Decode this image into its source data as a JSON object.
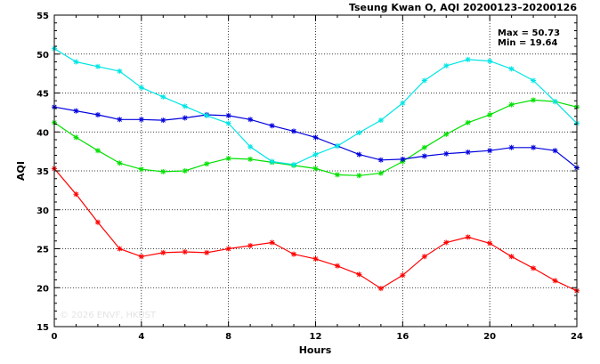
{
  "chart_data": {
    "type": "line",
    "title": "Tseung Kwan O, AQI 20200123–20200126",
    "xlabel": "Hours",
    "ylabel": "AQI",
    "xlim": [
      0,
      24
    ],
    "ylim": [
      15,
      55
    ],
    "xticks": [
      0,
      4,
      8,
      12,
      16,
      20,
      24
    ],
    "yticks": [
      15,
      20,
      25,
      30,
      35,
      40,
      45,
      50,
      55
    ],
    "x_tick_labels": [
      "0",
      "4",
      "8",
      "12",
      "16",
      "20",
      "24"
    ],
    "y_tick_labels": [
      "15",
      "20",
      "25",
      "30",
      "35",
      "40",
      "45",
      "50",
      "55"
    ],
    "grid": true,
    "stats": {
      "max": "Max = 50.73",
      "min": "Min = 19.64"
    },
    "watermark": "© 2026  ENVF, HKUST",
    "x": [
      0,
      1,
      2,
      3,
      4,
      5,
      6,
      7,
      8,
      9,
      10,
      11,
      12,
      13,
      14,
      15,
      16,
      17,
      18,
      19,
      20,
      21,
      22,
      23,
      24
    ],
    "series": [
      {
        "color": "#ff0000",
        "values": [
          35.3,
          32.0,
          28.4,
          25.0,
          24.0,
          24.5,
          24.6,
          24.5,
          25.0,
          25.4,
          25.8,
          24.3,
          23.7,
          22.8,
          21.7,
          19.9,
          21.6,
          24.0,
          25.8,
          26.5,
          25.7,
          24.0,
          22.5,
          20.9,
          19.6
        ]
      },
      {
        "color": "#00e000",
        "values": [
          41.2,
          39.3,
          37.6,
          36.0,
          35.2,
          34.9,
          35.0,
          35.9,
          36.6,
          36.5,
          36.1,
          35.7,
          35.3,
          34.5,
          34.4,
          34.7,
          36.2,
          38.0,
          39.7,
          41.2,
          42.2,
          43.5,
          44.1,
          43.9,
          43.2
        ]
      },
      {
        "color": "#0000dd",
        "values": [
          43.2,
          42.7,
          42.2,
          41.6,
          41.6,
          41.5,
          41.8,
          42.2,
          42.1,
          41.6,
          40.8,
          40.1,
          39.3,
          38.2,
          37.1,
          36.4,
          36.5,
          36.9,
          37.2,
          37.4,
          37.6,
          38.0,
          38.0,
          37.6,
          35.4
        ]
      },
      {
        "color": "#00e5e5",
        "values": [
          50.7,
          49.0,
          48.4,
          47.8,
          45.7,
          44.5,
          43.3,
          42.1,
          41.1,
          38.1,
          36.2,
          35.8,
          37.1,
          38.2,
          39.9,
          41.5,
          43.7,
          46.6,
          48.5,
          49.3,
          49.1,
          48.1,
          46.6,
          43.9,
          41.1
        ]
      }
    ]
  }
}
